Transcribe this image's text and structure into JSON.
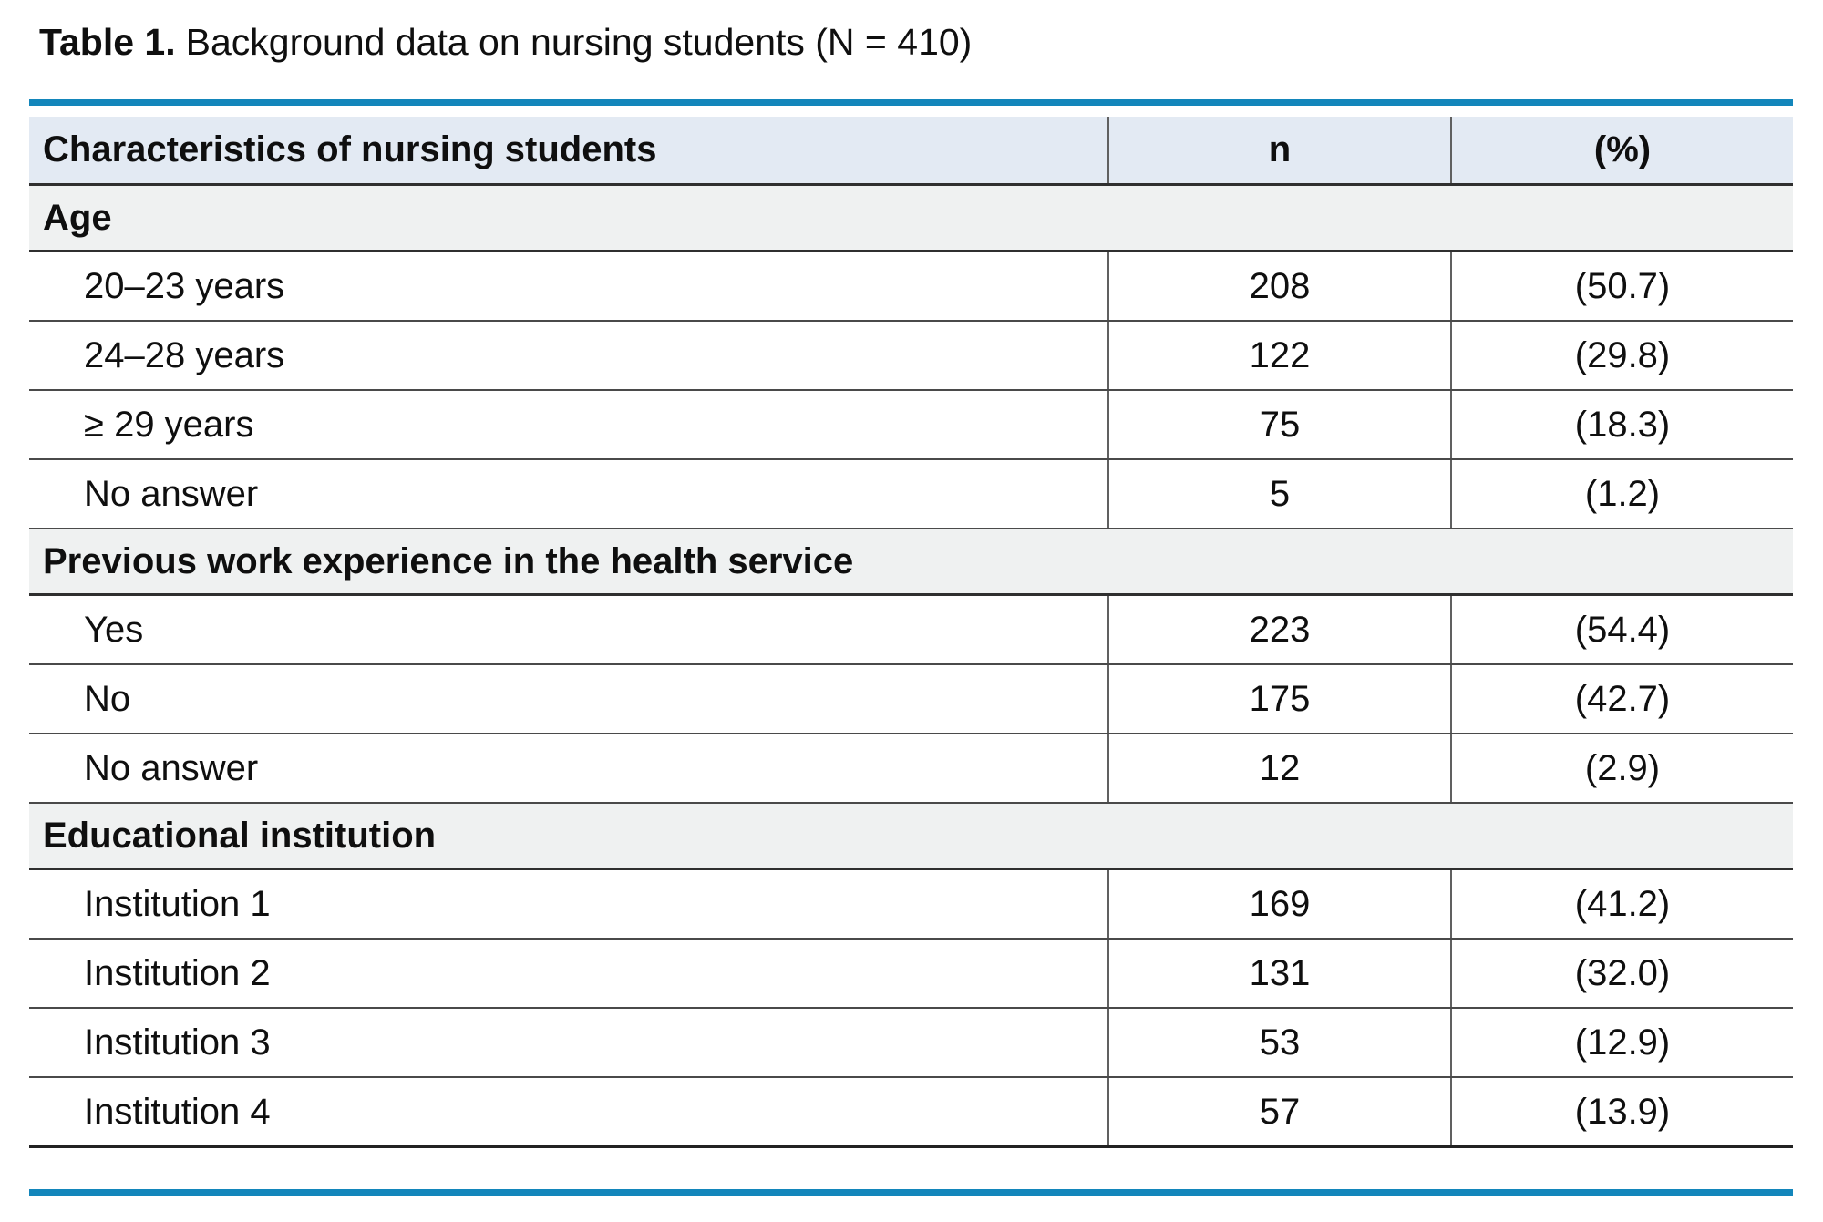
{
  "title": {
    "prefix": "Table 1.",
    "rest": "Background data on nursing students (N = 410)"
  },
  "colors": {
    "rule_blue": "#1386BB",
    "header_bg": "#E3EAF3",
    "section_bg": "#EFF1F1"
  },
  "table": {
    "columns": [
      {
        "label": "Characteristics of nursing students"
      },
      {
        "label": "n"
      },
      {
        "label": "(%)"
      }
    ],
    "sections": [
      {
        "label": "Age",
        "rows": [
          {
            "label": "20–23 years",
            "n": "208",
            "pct": "(50.7)"
          },
          {
            "label": "24–28 years",
            "n": "122",
            "pct": "(29.8)"
          },
          {
            "label": "≥ 29 years",
            "n": "75",
            "pct": "(18.3)"
          },
          {
            "label": "No answer",
            "n": "5",
            "pct": "(1.2)"
          }
        ]
      },
      {
        "label": "Previous work experience in the health service",
        "rows": [
          {
            "label": "Yes",
            "n": "223",
            "pct": "(54.4)"
          },
          {
            "label": "No",
            "n": "175",
            "pct": "(42.7)"
          },
          {
            "label": "No answer",
            "n": "12",
            "pct": "(2.9)"
          }
        ]
      },
      {
        "label": "Educational institution",
        "rows": [
          {
            "label": "Institution 1",
            "n": "169",
            "pct": "(41.2)"
          },
          {
            "label": "Institution 2",
            "n": "131",
            "pct": "(32.0)"
          },
          {
            "label": "Institution 3",
            "n": "53",
            "pct": "(12.9)"
          },
          {
            "label": "Institution 4",
            "n": "57",
            "pct": "(13.9)"
          }
        ]
      }
    ]
  }
}
